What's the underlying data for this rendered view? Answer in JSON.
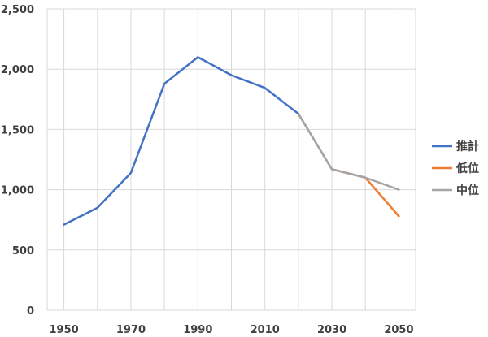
{
  "chart_data": {
    "type": "line",
    "title": "",
    "xlabel": "",
    "ylabel": "",
    "xlim": [
      1945,
      2055
    ],
    "ylim": [
      0,
      2500
    ],
    "x_ticks": [
      "1950",
      "1970",
      "1990",
      "2010",
      "2030",
      "2050"
    ],
    "y_ticks": [
      "0",
      "500",
      "1,000",
      "1,500",
      "2,000",
      "2,500"
    ],
    "grid": true,
    "legend_position": "right",
    "series": [
      {
        "name": "推計",
        "color": "#4472C4",
        "x": [
          1950,
          1960,
          1970,
          1980,
          1990,
          2000,
          2010,
          2020
        ],
        "y": [
          710,
          850,
          1140,
          1880,
          2100,
          1950,
          1845,
          1630
        ]
      },
      {
        "name": "低位",
        "color": "#ED7D31",
        "x": [
          2020,
          2030,
          2040,
          2050
        ],
        "y": [
          1630,
          1170,
          1100,
          780
        ]
      },
      {
        "name": "中位",
        "color": "#A5A5A5",
        "x": [
          2020,
          2030,
          2040,
          2050
        ],
        "y": [
          1630,
          1170,
          1100,
          1000
        ]
      }
    ]
  }
}
